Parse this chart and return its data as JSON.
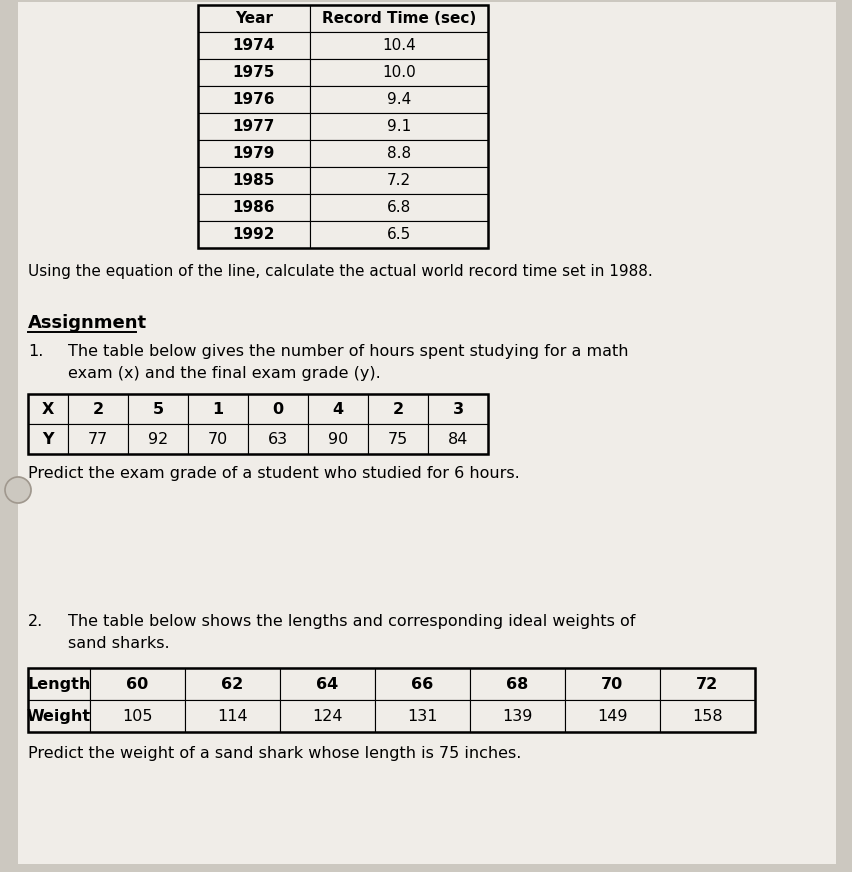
{
  "bg_color": "#ccc8c0",
  "paper_color": "#f0ede8",
  "table1_headers": [
    "Year",
    "Record Time (sec)"
  ],
  "table1_years": [
    "1974",
    "1975",
    "1976",
    "1977",
    "1979",
    "1985",
    "1986",
    "1992"
  ],
  "table1_times": [
    "10.4",
    "10.0",
    "9.4",
    "9.1",
    "8.8",
    "7.2",
    "6.8",
    "6.5"
  ],
  "caption1": "Using the equation of the line, calculate the actual world record time set in 1988.",
  "assignment_label": "Assignment",
  "q1_number": "1.",
  "q1_text1": "The table below gives the number of hours spent studying for a math",
  "q1_text2": "exam (x) and the final exam grade (y).",
  "table2_row1_label": "X",
  "table2_row2_label": "Y",
  "table2_x": [
    "2",
    "5",
    "1",
    "0",
    "4",
    "2",
    "3"
  ],
  "table2_y": [
    "77",
    "92",
    "70",
    "63",
    "90",
    "75",
    "84"
  ],
  "caption2": "Predict the exam grade of a student who studied for 6 hours.",
  "q2_number": "2.",
  "q2_text1": "The table below shows the lengths and corresponding ideal weights of",
  "q2_text2": "sand sharks.",
  "table3_row1_label": "Length",
  "table3_row2_label": "Weight",
  "table3_lengths": [
    "60",
    "62",
    "64",
    "66",
    "68",
    "70",
    "72"
  ],
  "table3_weights": [
    "105",
    "114",
    "124",
    "131",
    "139",
    "149",
    "158"
  ],
  "caption3": "Predict the weight of a sand shark whose length is 75 inches."
}
